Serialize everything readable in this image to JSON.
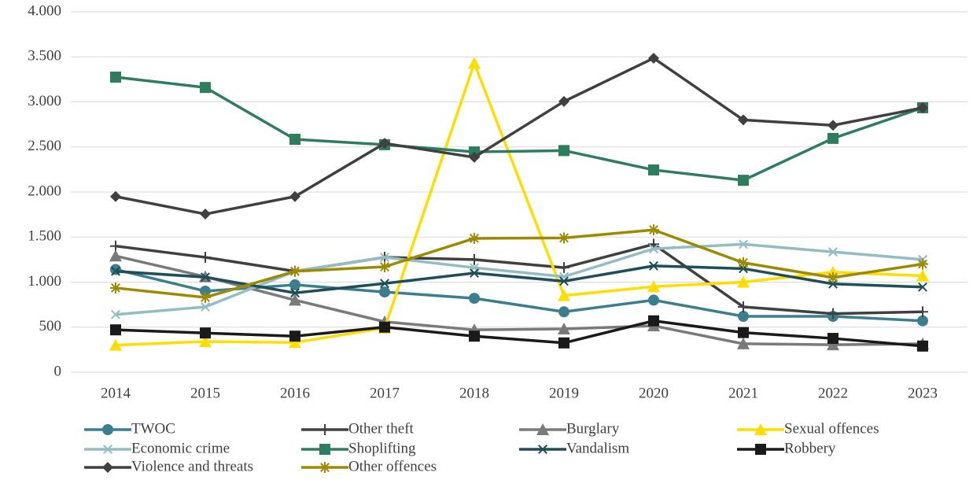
{
  "chart_data": {
    "type": "line",
    "categories": [
      "2014",
      "2015",
      "2016",
      "2017",
      "2018",
      "2019",
      "2020",
      "2021",
      "2022",
      "2023"
    ],
    "ylim": [
      0,
      4000
    ],
    "yticks": [
      0,
      500,
      {
        "value": 1000,
        "label": "1.000"
      },
      {
        "value": 1500,
        "label": "1.500"
      },
      {
        "value": 2000,
        "label": "2.000"
      },
      {
        "value": 2500,
        "label": "2.500"
      },
      {
        "value": 3000,
        "label": "3.000"
      },
      {
        "value": 3500,
        "label": "3.500"
      },
      {
        "value": 4000,
        "label": "4.000"
      }
    ],
    "grid": true,
    "legend": "bottom",
    "series": [
      {
        "name": "TWOC",
        "color": "#3b7f8f",
        "marker": "circle",
        "values": [
          1140,
          900,
          970,
          890,
          820,
          670,
          800,
          620,
          620,
          570
        ]
      },
      {
        "name": "Other theft",
        "color": "#404040",
        "marker": "plus",
        "values": [
          1400,
          1275,
          1120,
          1275,
          1250,
          1160,
          1420,
          725,
          650,
          670
        ]
      },
      {
        "name": "Burglary",
        "color": "#7a7a7a",
        "marker": "triangle",
        "values": [
          1290,
          1060,
          800,
          560,
          470,
          480,
          515,
          315,
          305,
          315
        ]
      },
      {
        "name": "Sexual offences",
        "color": "#ffdd00",
        "marker": "triangle",
        "values": [
          300,
          340,
          330,
          490,
          3430,
          850,
          950,
          1000,
          1110,
          1070
        ]
      },
      {
        "name": "Economic crime",
        "color": "#93bcc4",
        "marker": "x",
        "values": [
          640,
          725,
          1120,
          1275,
          1160,
          1060,
          1370,
          1420,
          1335,
          1250
        ]
      },
      {
        "name": "Shoplifting",
        "color": "#2e7d5e",
        "marker": "square",
        "values": [
          3275,
          3160,
          2585,
          2525,
          2445,
          2460,
          2245,
          2130,
          2595,
          2935
        ]
      },
      {
        "name": "Vandalism",
        "color": "#1f4e59",
        "marker": "x",
        "values": [
          1120,
          1055,
          880,
          985,
          1100,
          1010,
          1180,
          1150,
          980,
          945
        ]
      },
      {
        "name": "Robbery",
        "color": "#1a1a1a",
        "marker": "square",
        "values": [
          470,
          435,
          400,
          500,
          400,
          325,
          570,
          440,
          375,
          290
        ]
      },
      {
        "name": "Violence and threats",
        "color": "#404040",
        "marker": "diamond",
        "values": [
          1950,
          1755,
          1950,
          2540,
          2385,
          3005,
          3485,
          2800,
          2740,
          2935
        ]
      },
      {
        "name": "Other offences",
        "color": "#9c8a00",
        "marker": "asterisk",
        "values": [
          935,
          830,
          1120,
          1170,
          1485,
          1490,
          1580,
          1215,
          1050,
          1200
        ]
      }
    ]
  }
}
